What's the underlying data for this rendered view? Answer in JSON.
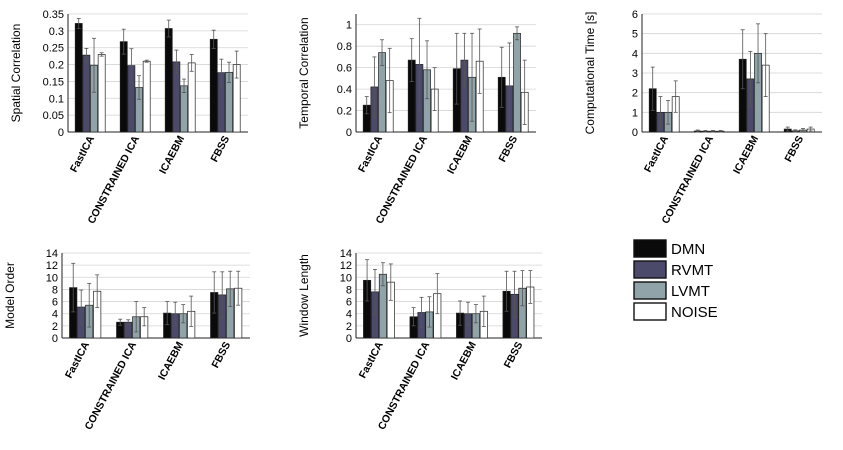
{
  "series_colors": {
    "DMN": "#0a0a0a",
    "RVMT": "#4b4a6b",
    "LVMT": "#8fa3a8",
    "NOISE": "#ffffff"
  },
  "legend": [
    "DMN",
    "RVMT",
    "LVMT",
    "NOISE"
  ],
  "chart_data": [
    {
      "id": "spatial",
      "type": "bar",
      "ylabel": "Spatial Correlation",
      "ylim": [
        0,
        0.35
      ],
      "yticks": [
        0,
        0.05,
        0.1,
        0.15,
        0.2,
        0.25,
        0.3,
        0.35
      ],
      "ytick_labels": [
        "0",
        "0.05",
        "0.1",
        "0.15",
        "0.2",
        "0.25",
        "0.3",
        "0.35"
      ],
      "categories": [
        "FastICA",
        "CONSTRAINED ICA",
        "ICAEBM",
        "FBSS"
      ],
      "series": [
        {
          "name": "DMN",
          "values": [
            0.322,
            0.268,
            0.307,
            0.275
          ],
          "errors": [
            0.015,
            0.037,
            0.025,
            0.027
          ]
        },
        {
          "name": "RVMT",
          "values": [
            0.228,
            0.197,
            0.208,
            0.176
          ],
          "errors": [
            0.02,
            0.05,
            0.035,
            0.04
          ]
        },
        {
          "name": "LVMT",
          "values": [
            0.198,
            0.132,
            0.137,
            0.177
          ],
          "errors": [
            0.08,
            0.035,
            0.02,
            0.03
          ]
        },
        {
          "name": "NOISE",
          "values": [
            0.23,
            0.21,
            0.205,
            0.2
          ],
          "errors": [
            0.005,
            0.003,
            0.025,
            0.04
          ]
        }
      ]
    },
    {
      "id": "temporal",
      "type": "bar",
      "ylabel": "Temporal Correlation",
      "ylim": [
        0,
        1.1
      ],
      "yticks": [
        0,
        0.2,
        0.4,
        0.6,
        0.8,
        1
      ],
      "ytick_labels": [
        "0",
        "0.2",
        "0.4",
        "0.6",
        "0.8",
        "1"
      ],
      "categories": [
        "FastICA",
        "CONSTRAINED ICA",
        "ICAEBM",
        "FBSS"
      ],
      "series": [
        {
          "name": "DMN",
          "values": [
            0.25,
            0.67,
            0.59,
            0.51
          ],
          "errors": [
            0.08,
            0.2,
            0.33,
            0.28
          ]
        },
        {
          "name": "RVMT",
          "values": [
            0.42,
            0.63,
            0.67,
            0.43
          ],
          "errors": [
            0.28,
            0.43,
            0.25,
            0.4
          ]
        },
        {
          "name": "LVMT",
          "values": [
            0.74,
            0.58,
            0.51,
            0.92
          ],
          "errors": [
            0.12,
            0.27,
            0.41,
            0.06
          ]
        },
        {
          "name": "NOISE",
          "values": [
            0.48,
            0.4,
            0.66,
            0.37
          ],
          "errors": [
            0.3,
            0.2,
            0.3,
            0.3
          ]
        }
      ]
    },
    {
      "id": "comptime",
      "type": "bar",
      "ylabel": "Computational Time [s]",
      "ylim": [
        0,
        6
      ],
      "yticks": [
        0,
        1,
        2,
        3,
        4,
        5,
        6
      ],
      "ytick_labels": [
        "0",
        "1",
        "2",
        "3",
        "4",
        "5",
        "6"
      ],
      "categories": [
        "FastICA",
        "CONSTRAINED ICA",
        "ICAEBM",
        "FBSS"
      ],
      "series": [
        {
          "name": "DMN",
          "values": [
            2.2,
            0.05,
            3.7,
            0.15
          ],
          "errors": [
            1.1,
            0.05,
            1.5,
            0.1
          ]
        },
        {
          "name": "RVMT",
          "values": [
            1.0,
            0.04,
            2.7,
            0.06
          ],
          "errors": [
            0.8,
            0.04,
            1.4,
            0.05
          ]
        },
        {
          "name": "LVMT",
          "values": [
            1.0,
            0.04,
            4.0,
            0.1
          ],
          "errors": [
            0.6,
            0.04,
            1.5,
            0.08
          ]
        },
        {
          "name": "NOISE",
          "values": [
            1.8,
            0.04,
            3.4,
            0.15
          ],
          "errors": [
            0.8,
            0.04,
            1.6,
            0.1
          ]
        }
      ]
    },
    {
      "id": "order",
      "type": "bar",
      "ylabel": "Model Order",
      "ylim": [
        0,
        14
      ],
      "yticks": [
        0,
        2,
        4,
        6,
        8,
        10,
        12,
        14
      ],
      "ytick_labels": [
        "0",
        "2",
        "4",
        "6",
        "8",
        "10",
        "12",
        "14"
      ],
      "categories": [
        "FastICA",
        "CONSTRAINED ICA",
        "ICAEBM",
        "FBSS"
      ],
      "series": [
        {
          "name": "DMN",
          "values": [
            8.3,
            2.6,
            4.1,
            7.5
          ],
          "errors": [
            4.0,
            0.5,
            1.9,
            3.4
          ]
        },
        {
          "name": "RVMT",
          "values": [
            5.1,
            2.6,
            4.0,
            7.1
          ],
          "errors": [
            2.8,
            0.4,
            1.9,
            3.8
          ]
        },
        {
          "name": "LVMT",
          "values": [
            5.4,
            3.5,
            4.0,
            8.1
          ],
          "errors": [
            3.6,
            2.5,
            1.5,
            2.9
          ]
        },
        {
          "name": "NOISE",
          "values": [
            7.7,
            3.5,
            4.4,
            8.2
          ],
          "errors": [
            2.7,
            1.5,
            2.5,
            2.8
          ]
        }
      ]
    },
    {
      "id": "window",
      "type": "bar",
      "ylabel": "Window Length",
      "ylim": [
        0,
        14
      ],
      "yticks": [
        0,
        2,
        4,
        6,
        8,
        10,
        12,
        14
      ],
      "ytick_labels": [
        "0",
        "2",
        "4",
        "6",
        "8",
        "10",
        "12",
        "14"
      ],
      "categories": [
        "FastICA",
        "CONSTRAINED ICA",
        "ICAEBM",
        "FBSS"
      ],
      "series": [
        {
          "name": "DMN",
          "values": [
            9.5,
            3.5,
            4.1,
            7.7
          ],
          "errors": [
            3.4,
            1.5,
            2.0,
            3.3
          ]
        },
        {
          "name": "RVMT",
          "values": [
            7.6,
            4.2,
            4.0,
            7.2
          ],
          "errors": [
            3.7,
            2.5,
            1.9,
            3.8
          ]
        },
        {
          "name": "LVMT",
          "values": [
            10.5,
            4.3,
            4.0,
            8.2
          ],
          "errors": [
            1.9,
            2.5,
            1.5,
            2.9
          ]
        },
        {
          "name": "NOISE",
          "values": [
            9.2,
            7.3,
            4.4,
            8.4
          ],
          "errors": [
            3.0,
            3.3,
            2.5,
            2.7
          ]
        }
      ]
    }
  ]
}
